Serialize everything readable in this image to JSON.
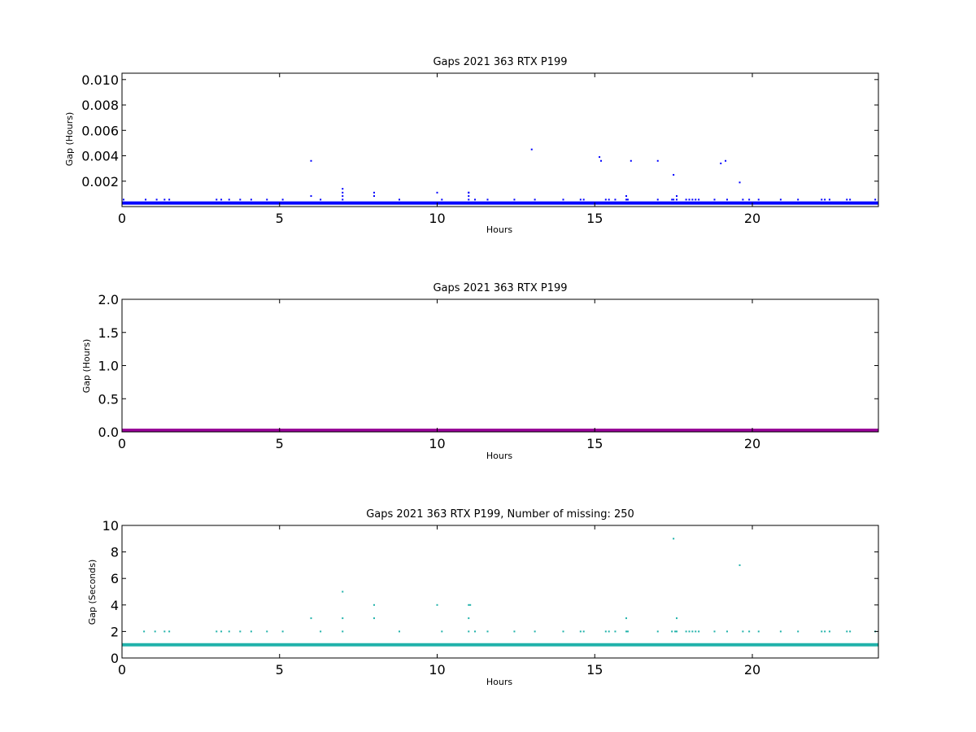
{
  "chart_data": [
    {
      "type": "scatter",
      "title": "Gaps 2021 363 RTX  P199",
      "xlabel": "Hours",
      "ylabel": "Gap (Hours)",
      "xlim": [
        0,
        24
      ],
      "ylim": [
        0,
        0.0105
      ],
      "xticks": [
        0,
        5,
        10,
        15,
        20
      ],
      "yticks": [
        0.002,
        0.004,
        0.006,
        0.008,
        0.01
      ],
      "ytick_labels": [
        "0.002",
        "0.004",
        "0.006",
        "0.008",
        "0.010"
      ],
      "grid": false,
      "color": "#0000ff",
      "baseline": {
        "y": 0.00028,
        "x_start": 0,
        "x_end": 24,
        "description": "dense band of 1-second gaps"
      },
      "series": [
        {
          "x": [
            0.05,
            0.75,
            1.1,
            1.35,
            1.5,
            3.0,
            3.15,
            3.4,
            3.75,
            4.1,
            4.6,
            5.1,
            6.0,
            6.0,
            6.3,
            7.0,
            7.0,
            7.0,
            7.0,
            8.0,
            8.0,
            8.8,
            10.0,
            10.15,
            11.0,
            11.0,
            11.0,
            11.0,
            11.2,
            11.6,
            12.45,
            13.0,
            13.1,
            14.0,
            14.55,
            14.65,
            15.15,
            15.2,
            15.35,
            15.45,
            15.65,
            16.0,
            16.0,
            16.05,
            16.15,
            17.0,
            17.0,
            17.45,
            17.5,
            17.5,
            17.6,
            17.6,
            17.9,
            18.0,
            18.1,
            18.2,
            18.3,
            18.8,
            19.0,
            19.15,
            19.2,
            19.6,
            19.7,
            19.9,
            20.2,
            20.9,
            21.45,
            22.2,
            22.3,
            22.45,
            23.0,
            23.1,
            23.9
          ],
          "y": [
            0.00055,
            0.00055,
            0.00055,
            0.00055,
            0.00055,
            0.00055,
            0.00055,
            0.00055,
            0.00055,
            0.00055,
            0.00055,
            0.00055,
            0.0036,
            0.00083,
            0.00055,
            0.0014,
            0.0011,
            0.00083,
            0.00055,
            0.0011,
            0.00083,
            0.00055,
            0.0011,
            0.00055,
            0.0011,
            0.0011,
            0.00083,
            0.00055,
            0.00055,
            0.00055,
            0.00055,
            0.0045,
            0.00055,
            0.00055,
            0.00055,
            0.00055,
            0.0039,
            0.0036,
            0.00055,
            0.00055,
            0.00055,
            0.00083,
            0.00055,
            0.00055,
            0.0036,
            0.0036,
            0.00055,
            0.00055,
            0.0025,
            0.00055,
            0.00083,
            0.00055,
            0.00055,
            0.00055,
            0.00055,
            0.00055,
            0.00055,
            0.00055,
            0.0034,
            0.0036,
            0.00055,
            0.0019,
            0.00055,
            0.00055,
            0.00055,
            0.00055,
            0.00055,
            0.00055,
            0.00055,
            0.00055,
            0.00055,
            0.00055,
            0.00055
          ]
        }
      ]
    },
    {
      "type": "scatter",
      "title": "Gaps 2021 363 RTX  P199",
      "xlabel": "Hours",
      "ylabel": "Gap (Hours)",
      "xlim": [
        0,
        24
      ],
      "ylim": [
        0,
        2.0
      ],
      "xticks": [
        0,
        5,
        10,
        15,
        20
      ],
      "yticks": [
        0.0,
        0.5,
        1.0,
        1.5,
        2.0
      ],
      "ytick_labels": [
        "0.0",
        "0.5",
        "1.0",
        "1.5",
        "2.0"
      ],
      "grid": false,
      "color": "#990099",
      "baseline": {
        "y": 0.0,
        "x_start": 0,
        "x_end": 24,
        "description": "all gaps near zero"
      },
      "series": []
    },
    {
      "type": "scatter",
      "title": "Gaps 2021 363 RTX  P199, Number of missing: 250",
      "xlabel": "Hours",
      "ylabel": "Gap (Seconds)",
      "xlim": [
        0,
        24
      ],
      "ylim": [
        0,
        10
      ],
      "xticks": [
        0,
        5,
        10,
        15,
        20
      ],
      "yticks": [
        0,
        2,
        4,
        6,
        8,
        10
      ],
      "ytick_labels": [
        "0",
        "2",
        "4",
        "6",
        "8",
        "10"
      ],
      "grid": false,
      "color": "#20b2aa",
      "baseline": {
        "y": 1,
        "x_start": 0,
        "x_end": 24,
        "description": "dense band of 1-second gaps"
      },
      "series": [
        {
          "x": [
            0.7,
            1.05,
            1.35,
            1.5,
            3.0,
            3.15,
            3.4,
            3.75,
            4.1,
            4.6,
            5.1,
            6.0,
            6.3,
            7.0,
            7.0,
            7.0,
            8.0,
            8.0,
            8.8,
            10.0,
            10.15,
            11.0,
            11.05,
            11.0,
            11.0,
            11.2,
            11.6,
            12.45,
            13.1,
            14.0,
            14.55,
            14.65,
            15.35,
            15.45,
            15.65,
            16.0,
            16.0,
            16.05,
            17.0,
            17.45,
            17.5,
            17.55,
            17.6,
            17.6,
            17.9,
            18.0,
            18.1,
            18.2,
            18.3,
            18.8,
            19.2,
            19.6,
            19.7,
            19.9,
            20.2,
            20.9,
            21.45,
            22.2,
            22.3,
            22.45,
            23.0,
            23.1,
            23.9
          ],
          "y": [
            2,
            2,
            2,
            2,
            2,
            2,
            2,
            2,
            2,
            2,
            2,
            3,
            2,
            5,
            3,
            2,
            4,
            3,
            2,
            4,
            2,
            4,
            4,
            3,
            2,
            2,
            2,
            2,
            2,
            2,
            2,
            2,
            2,
            2,
            2,
            3,
            2,
            2,
            2,
            2,
            9,
            2,
            3,
            2,
            2,
            2,
            2,
            2,
            2,
            2,
            2,
            7,
            2,
            2,
            2,
            2,
            2,
            2,
            2,
            2,
            2,
            2,
            2
          ]
        }
      ]
    }
  ]
}
